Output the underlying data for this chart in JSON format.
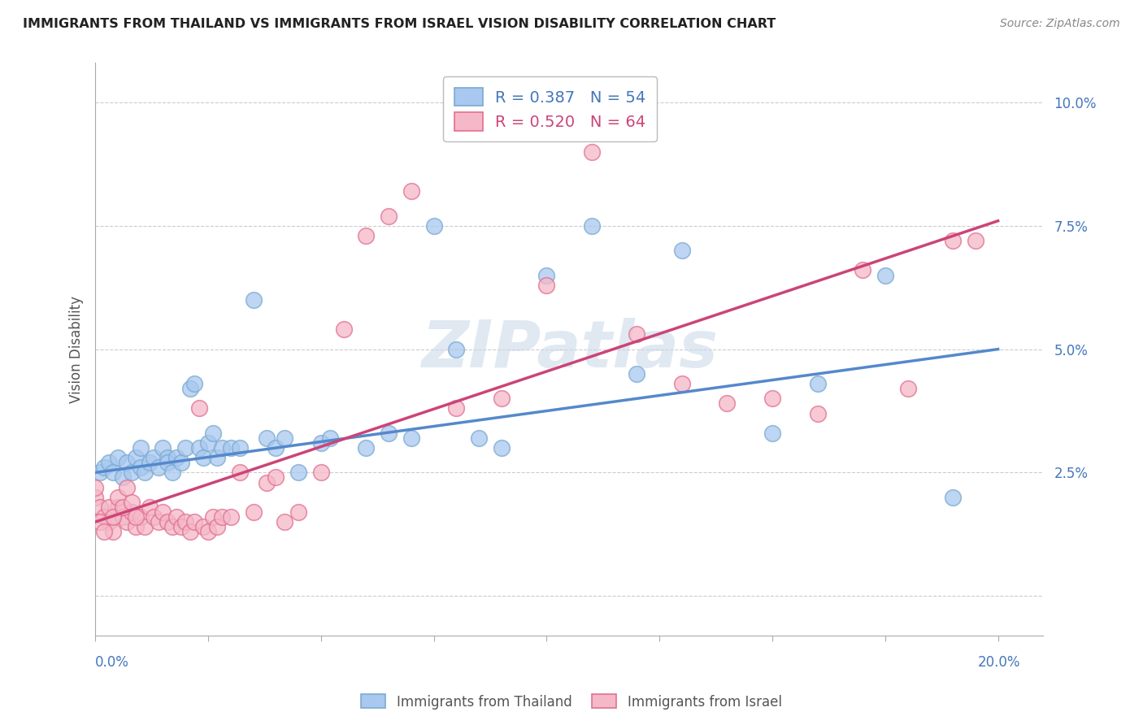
{
  "title": "IMMIGRANTS FROM THAILAND VS IMMIGRANTS FROM ISRAEL VISION DISABILITY CORRELATION CHART",
  "source": "Source: ZipAtlas.com",
  "ylabel": "Vision Disability",
  "yticks": [
    0.0,
    0.025,
    0.05,
    0.075,
    0.1
  ],
  "ytick_labels": [
    "",
    "2.5%",
    "5.0%",
    "7.5%",
    "10.0%"
  ],
  "xlim": [
    0.0,
    0.21
  ],
  "ylim": [
    -0.008,
    0.108
  ],
  "thailand_color": "#a8c8f0",
  "thailand_edge": "#7aaad0",
  "israel_color": "#f5b8c8",
  "israel_edge": "#e07090",
  "thailand_line_color": "#5588cc",
  "israel_line_color": "#cc4477",
  "thailand_R": 0.387,
  "thailand_N": 54,
  "israel_R": 0.52,
  "israel_N": 64,
  "watermark": "ZIPatlas",
  "background_color": "#ffffff",
  "grid_color": "#cccccc",
  "thailand_x": [
    0.001,
    0.002,
    0.003,
    0.004,
    0.005,
    0.006,
    0.007,
    0.008,
    0.009,
    0.01,
    0.01,
    0.011,
    0.012,
    0.013,
    0.014,
    0.015,
    0.016,
    0.016,
    0.017,
    0.018,
    0.019,
    0.02,
    0.021,
    0.022,
    0.023,
    0.024,
    0.025,
    0.026,
    0.027,
    0.028,
    0.03,
    0.032,
    0.035,
    0.038,
    0.04,
    0.042,
    0.045,
    0.05,
    0.052,
    0.06,
    0.065,
    0.07,
    0.075,
    0.08,
    0.085,
    0.09,
    0.1,
    0.11,
    0.12,
    0.13,
    0.15,
    0.16,
    0.175,
    0.19
  ],
  "thailand_y": [
    0.025,
    0.026,
    0.027,
    0.025,
    0.028,
    0.024,
    0.027,
    0.025,
    0.028,
    0.03,
    0.026,
    0.025,
    0.027,
    0.028,
    0.026,
    0.03,
    0.028,
    0.027,
    0.025,
    0.028,
    0.027,
    0.03,
    0.042,
    0.043,
    0.03,
    0.028,
    0.031,
    0.033,
    0.028,
    0.03,
    0.03,
    0.03,
    0.06,
    0.032,
    0.03,
    0.032,
    0.025,
    0.031,
    0.032,
    0.03,
    0.033,
    0.032,
    0.075,
    0.05,
    0.032,
    0.03,
    0.065,
    0.075,
    0.045,
    0.07,
    0.033,
    0.043,
    0.065,
    0.02
  ],
  "israel_x": [
    0.0,
    0.001,
    0.002,
    0.003,
    0.004,
    0.005,
    0.006,
    0.007,
    0.008,
    0.009,
    0.01,
    0.011,
    0.012,
    0.013,
    0.014,
    0.015,
    0.016,
    0.017,
    0.018,
    0.019,
    0.02,
    0.021,
    0.022,
    0.023,
    0.024,
    0.025,
    0.026,
    0.027,
    0.028,
    0.03,
    0.032,
    0.035,
    0.038,
    0.04,
    0.042,
    0.045,
    0.05,
    0.055,
    0.06,
    0.065,
    0.07,
    0.08,
    0.09,
    0.1,
    0.11,
    0.12,
    0.13,
    0.14,
    0.15,
    0.16,
    0.17,
    0.18,
    0.19,
    0.195,
    0.0,
    0.001,
    0.002,
    0.003,
    0.004,
    0.005,
    0.006,
    0.007,
    0.008,
    0.009
  ],
  "israel_y": [
    0.02,
    0.018,
    0.016,
    0.015,
    0.013,
    0.018,
    0.016,
    0.015,
    0.017,
    0.014,
    0.016,
    0.014,
    0.018,
    0.016,
    0.015,
    0.017,
    0.015,
    0.014,
    0.016,
    0.014,
    0.015,
    0.013,
    0.015,
    0.038,
    0.014,
    0.013,
    0.016,
    0.014,
    0.016,
    0.016,
    0.025,
    0.017,
    0.023,
    0.024,
    0.015,
    0.017,
    0.025,
    0.054,
    0.073,
    0.077,
    0.082,
    0.038,
    0.04,
    0.063,
    0.09,
    0.053,
    0.043,
    0.039,
    0.04,
    0.037,
    0.066,
    0.042,
    0.072,
    0.072,
    0.022,
    0.015,
    0.013,
    0.018,
    0.016,
    0.02,
    0.018,
    0.022,
    0.019,
    0.016
  ],
  "thailand_line_x0": 0.0,
  "thailand_line_y0": 0.025,
  "thailand_line_x1": 0.2,
  "thailand_line_y1": 0.05,
  "israel_line_x0": 0.0,
  "israel_line_y0": 0.015,
  "israel_line_x1": 0.2,
  "israel_line_y1": 0.076
}
